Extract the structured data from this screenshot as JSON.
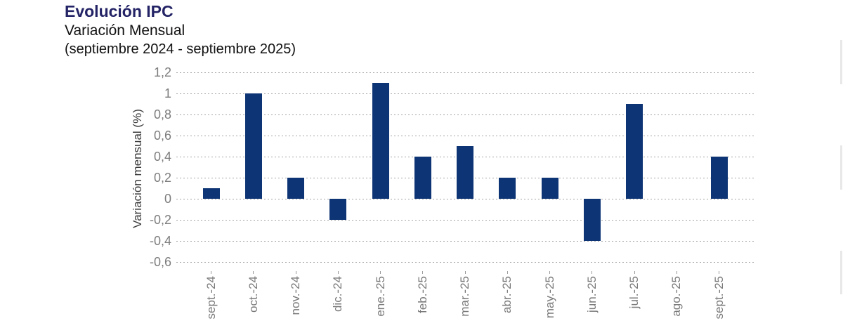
{
  "header": {
    "title": "Evolución IPC",
    "subtitle": "Variación Mensual",
    "period": "(septiembre 2024 - septiembre 2025)",
    "title_color": "#232366"
  },
  "chart_data": {
    "type": "bar",
    "title": "Evolución IPC",
    "subtitle": "Variación Mensual (septiembre 2024 - septiembre 2025)",
    "categories": [
      "sept.-24",
      "oct.-24",
      "nov.-24",
      "dic.-24",
      "ene.-25",
      "feb.-25",
      "mar.-25",
      "abr.-25",
      "may.-25",
      "jun.-25",
      "jul.-25",
      "ago.-25",
      "sept.-25"
    ],
    "values": [
      0.1,
      1.0,
      0.2,
      -0.2,
      1.1,
      0.4,
      0.5,
      0.2,
      0.2,
      -0.4,
      0.9,
      0.0,
      0.4
    ],
    "xlabel": "",
    "ylabel": "Variación mensual (%)",
    "ylim": [
      -0.6,
      1.2
    ],
    "ytick_values": [
      1.2,
      1.0,
      0.8,
      0.6,
      0.4,
      0.2,
      0,
      -0.2,
      -0.4,
      -0.6
    ],
    "ytick_labels": [
      "1,2",
      "1",
      "0,8",
      "0,6",
      "0,4",
      "0,2",
      "0",
      "-0,2",
      "-0,4",
      "-0,6"
    ],
    "grid": "horizontal dotted",
    "legend": "none",
    "bar_color": "#0d3474",
    "grid_color": "#a6a6a6",
    "tick_label_color": "#7d7d7d"
  }
}
